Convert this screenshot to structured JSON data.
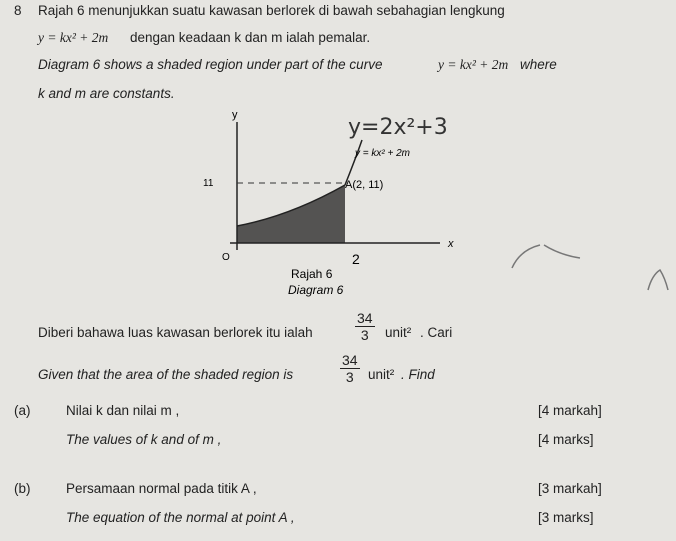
{
  "question_number": "8",
  "intro_ms": {
    "line1": "Rajah 6 menunjukkan suatu kawasan berlorek di bawah sebahagian lengkung",
    "equation": "y = kx² + 2m",
    "line2": "dengan keadaan k dan m ialah pemalar."
  },
  "intro_en": {
    "before": "Diagram 6 shows a shaded region under part of the curve",
    "equation": "y = kx² + 2m",
    "after": "where",
    "line2": "k and m are constants."
  },
  "diagram": {
    "y_axis": "y",
    "x_axis": "x",
    "origin": "O",
    "curve_label": "y = kx² + 2m",
    "point": "A(2, 11)",
    "y_value": "11",
    "x_value": "2",
    "handwritten": "y=2x²+3",
    "caption_ms": "Rajah 6",
    "caption_en": "Diagram 6"
  },
  "given_ms": {
    "before": "Diberi bahawa luas kawasan berlorek itu ialah",
    "numerator": "34",
    "denominator": "3",
    "unit": "unit²",
    "after": ". Cari"
  },
  "given_en": {
    "before": "Given that the area of the shaded region is",
    "numerator": "34",
    "denominator": "3",
    "unit": "unit²",
    "after": ". Find"
  },
  "parts": [
    {
      "label": "(a)",
      "ms": "Nilai k dan nilai m ,",
      "marks_ms": "[4 markah]",
      "en": "The values of k and of m ,",
      "marks_en": "[4 marks]"
    },
    {
      "label": "(b)",
      "ms": "Persamaan normal pada titik A ,",
      "marks_ms": "[3 markah]",
      "en": "The equation of the normal at point A ,",
      "marks_en": "[3 marks]"
    }
  ]
}
